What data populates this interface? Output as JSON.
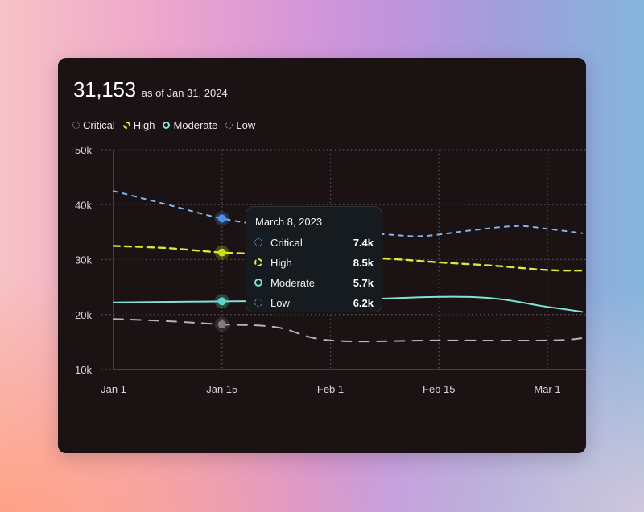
{
  "header": {
    "total": "31,153",
    "as_of": "as of Jan 31, 2024"
  },
  "legend": [
    {
      "key": "critical",
      "label": "Critical",
      "icon": "dotted-circle-icon"
    },
    {
      "key": "high",
      "label": "High",
      "icon": "dashed-circle-icon"
    },
    {
      "key": "moderate",
      "label": "Moderate",
      "icon": "solid-circle-icon"
    },
    {
      "key": "low",
      "label": "Low",
      "icon": "dashed-circle-icon"
    }
  ],
  "tooltip": {
    "title": "March 8, 2023",
    "rows": [
      {
        "key": "critical",
        "label": "Critical",
        "value": "7.4k"
      },
      {
        "key": "high",
        "label": "High",
        "value": "8.5k"
      },
      {
        "key": "moderate",
        "label": "Moderate",
        "value": "5.7k"
      },
      {
        "key": "low",
        "label": "Low",
        "value": "6.2k"
      }
    ]
  },
  "colors": {
    "critical": "#7eb6f2",
    "critical_marker": "#4d90f0",
    "high": "#d7ea3a",
    "high_marker": "#c8e01f",
    "moderate": "#7fe3d6",
    "moderate_marker": "#5fd6c6",
    "low": "#b9b4b6",
    "low_marker": "#7f7c7e",
    "grid": "#5a5255",
    "axis": "#4a4f58"
  },
  "chart_data": {
    "type": "line",
    "title": "31,153 as of Jan 31, 2024",
    "xlabel": "",
    "ylabel": "",
    "x_ticks": [
      {
        "label": "Jan 1",
        "day": 0
      },
      {
        "label": "Jan 15",
        "day": 14
      },
      {
        "label": "Feb 1",
        "day": 28
      },
      {
        "label": "Feb 15",
        "day": 42
      },
      {
        "label": "Mar 1",
        "day": 56
      }
    ],
    "y_ticks": [
      {
        "label": "50k",
        "value": 50000
      },
      {
        "label": "40k",
        "value": 40000
      },
      {
        "label": "30k",
        "value": 30000
      },
      {
        "label": "20k",
        "value": 20000
      },
      {
        "label": "10k",
        "value": 10000
      }
    ],
    "xlim": [
      0,
      60.5
    ],
    "ylim": [
      10000,
      50000
    ],
    "grid": true,
    "legend_position": "top-left",
    "highlight_day": 14,
    "series": [
      {
        "key": "critical",
        "name": "Critical",
        "style": "dotted-dash",
        "points": [
          [
            0,
            42500
          ],
          [
            7,
            40000
          ],
          [
            14,
            37500
          ],
          [
            21,
            36000
          ],
          [
            28,
            35300
          ],
          [
            35,
            34600
          ],
          [
            40,
            34300
          ],
          [
            46,
            35300
          ],
          [
            52,
            36100
          ],
          [
            56,
            35600
          ],
          [
            60.5,
            34800
          ]
        ]
      },
      {
        "key": "high",
        "name": "High",
        "style": "dash",
        "points": [
          [
            0,
            32500
          ],
          [
            7,
            32100
          ],
          [
            14,
            31300
          ],
          [
            21,
            31000
          ],
          [
            28,
            30500
          ],
          [
            35,
            30200
          ],
          [
            42,
            29500
          ],
          [
            49,
            28900
          ],
          [
            56,
            28100
          ],
          [
            60.5,
            28000
          ]
        ]
      },
      {
        "key": "moderate",
        "name": "Moderate",
        "style": "solid",
        "points": [
          [
            0,
            22200
          ],
          [
            14,
            22400
          ],
          [
            28,
            22600
          ],
          [
            46,
            23200
          ],
          [
            56,
            21400
          ],
          [
            60.5,
            20500
          ]
        ]
      },
      {
        "key": "low",
        "name": "Low",
        "style": "long-dash",
        "points": [
          [
            0,
            19200
          ],
          [
            7,
            18800
          ],
          [
            14,
            18200
          ],
          [
            21,
            17700
          ],
          [
            28,
            15300
          ],
          [
            42,
            15300
          ],
          [
            56,
            15300
          ],
          [
            60.5,
            15700
          ]
        ]
      }
    ]
  }
}
